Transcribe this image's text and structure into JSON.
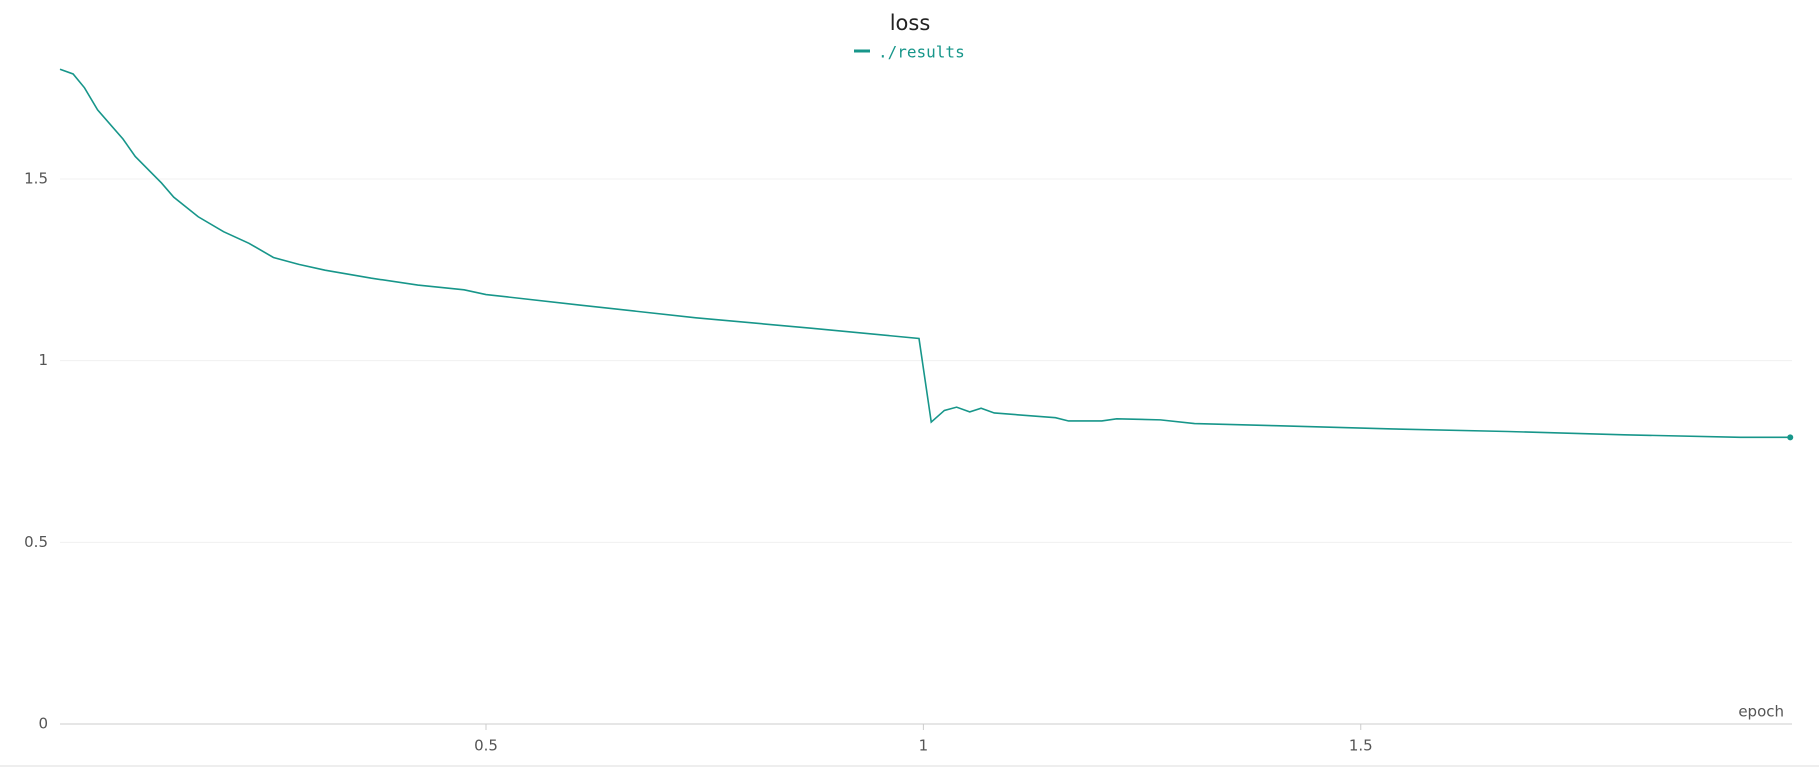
{
  "chart_data": {
    "type": "line",
    "title": "loss",
    "x_label": "epoch",
    "series": [
      {
        "name": "./results",
        "color": "#17968a",
        "x": [
          0.013,
          0.028,
          0.041,
          0.056,
          0.085,
          0.099,
          0.129,
          0.143,
          0.171,
          0.2,
          0.229,
          0.257,
          0.286,
          0.316,
          0.369,
          0.422,
          0.475,
          0.5,
          0.607,
          0.74,
          0.873,
          0.995,
          1.009,
          1.024,
          1.038,
          1.053,
          1.066,
          1.081,
          1.151,
          1.166,
          1.204,
          1.221,
          1.271,
          1.31,
          1.403,
          1.536,
          1.668,
          1.801,
          1.934,
          1.991
        ],
        "values": [
          1.802,
          1.789,
          1.751,
          1.69,
          1.61,
          1.562,
          1.489,
          1.45,
          1.396,
          1.355,
          1.323,
          1.284,
          1.265,
          1.249,
          1.227,
          1.208,
          1.195,
          1.182,
          1.153,
          1.118,
          1.089,
          1.061,
          0.831,
          0.863,
          0.872,
          0.859,
          0.869,
          0.856,
          0.843,
          0.834,
          0.834,
          0.84,
          0.837,
          0.827,
          0.821,
          0.812,
          0.805,
          0.796,
          0.789,
          0.789
        ]
      }
    ],
    "xlim": [
      0.013,
      1.993
    ],
    "ylim": [
      0,
      1.866
    ],
    "xticks": [
      0.5,
      1,
      1.5
    ],
    "yticks": [
      0,
      0.5,
      1,
      1.5
    ],
    "grid": true
  }
}
